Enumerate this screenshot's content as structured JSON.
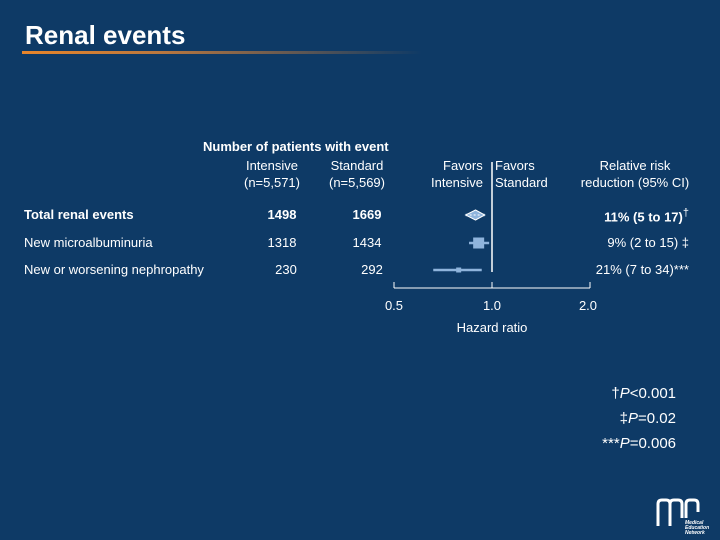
{
  "slide": {
    "title": "Renal events"
  },
  "table": {
    "group_header": "Number of patients with event",
    "col_intensive": {
      "line1": "Intensive",
      "line2": "(n=5,571)"
    },
    "col_standard": {
      "line1": "Standard",
      "line2": "(n=5,569)"
    },
    "favors_left": {
      "line1": "Favors",
      "line2": "Intensive"
    },
    "favors_right": {
      "line1": "Favors",
      "line2": "Standard"
    },
    "col_rr": {
      "line1": "Relative risk",
      "line2": "reduction (95% CI)"
    },
    "rows": [
      {
        "label": "Total renal events",
        "intensive": "1498",
        "standard": "1669",
        "rr": "11% (5 to 17)",
        "rr_mark": "†"
      },
      {
        "label": "New microalbuminuria",
        "intensive": "1318",
        "standard": "1434",
        "rr": "9% (2 to 15) ‡",
        "rr_mark": ""
      },
      {
        "label": "New or worsening nephropathy",
        "intensive": "230",
        "standard": "292",
        "rr": "21% (7 to 34)***",
        "rr_mark": ""
      }
    ]
  },
  "chart_data": {
    "type": "forest",
    "scale": "log",
    "xlim": [
      0.5,
      2.0
    ],
    "reference": 1.0,
    "xlabel": "Hazard ratio",
    "ticks": [
      "0.5",
      "1.0",
      "2.0"
    ],
    "tick_values": [
      0.5,
      1.0,
      2.0
    ],
    "series": [
      {
        "name": "Total renal events",
        "estimate": 0.89,
        "lower": 0.83,
        "upper": 0.95,
        "marker": "diamond"
      },
      {
        "name": "New microalbuminuria",
        "estimate": 0.91,
        "lower": 0.85,
        "upper": 0.98,
        "marker": "square"
      },
      {
        "name": "New or worsening nephropathy",
        "estimate": 0.79,
        "lower": 0.66,
        "upper": 0.93,
        "marker": "square"
      }
    ]
  },
  "footnotes": [
    {
      "symbol": "†",
      "label": "P",
      "value": "<0.001"
    },
    {
      "symbol": "‡",
      "label": "P",
      "value": "=0.02"
    },
    {
      "symbol": "***",
      "label": "P",
      "value": "=0.006"
    }
  ],
  "logo": {
    "text": "Medical Education Network"
  },
  "colors": {
    "background": "#0e3a66",
    "accent": "#e8852a",
    "marker": "#8fb4dc",
    "axis": "#ffffff"
  }
}
